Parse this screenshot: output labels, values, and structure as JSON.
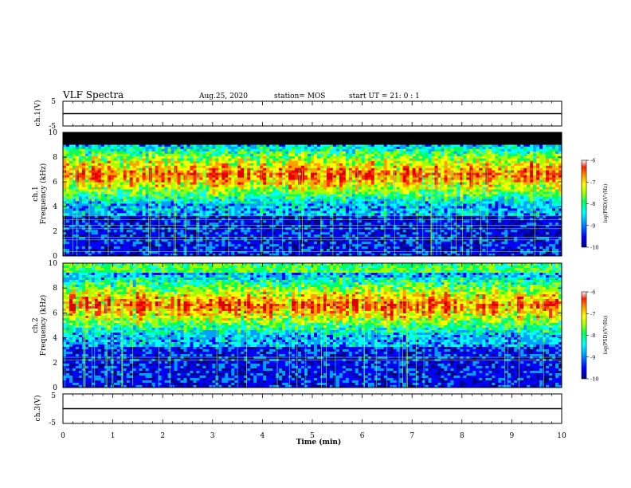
{
  "header": {
    "title": "VLF Spectra",
    "date": "Aug.25, 2020",
    "station": "station= MOS",
    "start_time": "start  UT  =   21: 0   : 1"
  },
  "chart_data": {
    "type": "heatmap",
    "title": "VLF Spectra",
    "xlabel": "Time  (min)",
    "xlim": [
      0,
      10
    ],
    "x_ticks": [
      "0",
      "1",
      "2",
      "3",
      "4",
      "5",
      "6",
      "7",
      "8",
      "9",
      "10"
    ],
    "panels": [
      {
        "name": "ch.1 waveform",
        "ylabel": "ch.1(V)",
        "ylim": [
          -5,
          5
        ],
        "y_ticks": [
          "5",
          "-5"
        ],
        "trace_value": 0
      },
      {
        "name": "ch.1 spectrogram",
        "ylabel_top": "ch.1",
        "ylabel": "Frequency  (kHz)",
        "ylim": [
          0,
          10
        ],
        "y_ticks": [
          "0",
          "2",
          "4",
          "6",
          "8",
          "10"
        ],
        "colorbar": {
          "label": "log(PSD)(V²/Hz)",
          "range": [
            -10,
            -6
          ],
          "ticks": [
            "-6",
            "-7",
            "-8",
            "-9",
            "-10"
          ]
        }
      },
      {
        "name": "ch.2 spectrogram",
        "ylabel_top": "ch.2",
        "ylabel": "Frequency  (kHz)",
        "ylim": [
          0,
          10
        ],
        "y_ticks": [
          "0",
          "2",
          "4",
          "6",
          "8",
          "10"
        ],
        "colorbar": {
          "label": "log(PSD)(V²/Hz)",
          "range": [
            -10,
            -6
          ],
          "ticks": [
            "-6",
            "-7",
            "-8",
            "-9",
            "-10"
          ]
        }
      },
      {
        "name": "ch.3 waveform",
        "ylabel": "ch.3(V)",
        "ylim": [
          -5,
          5
        ],
        "y_ticks": [
          "5",
          "-5"
        ],
        "trace_value": 0
      }
    ],
    "colormap": [
      "#000080",
      "#0000ff",
      "#00a0ff",
      "#00ffff",
      "#00ff60",
      "#a0ff00",
      "#ffff00",
      "#ffa000",
      "#ff3000",
      "#e00000"
    ]
  }
}
